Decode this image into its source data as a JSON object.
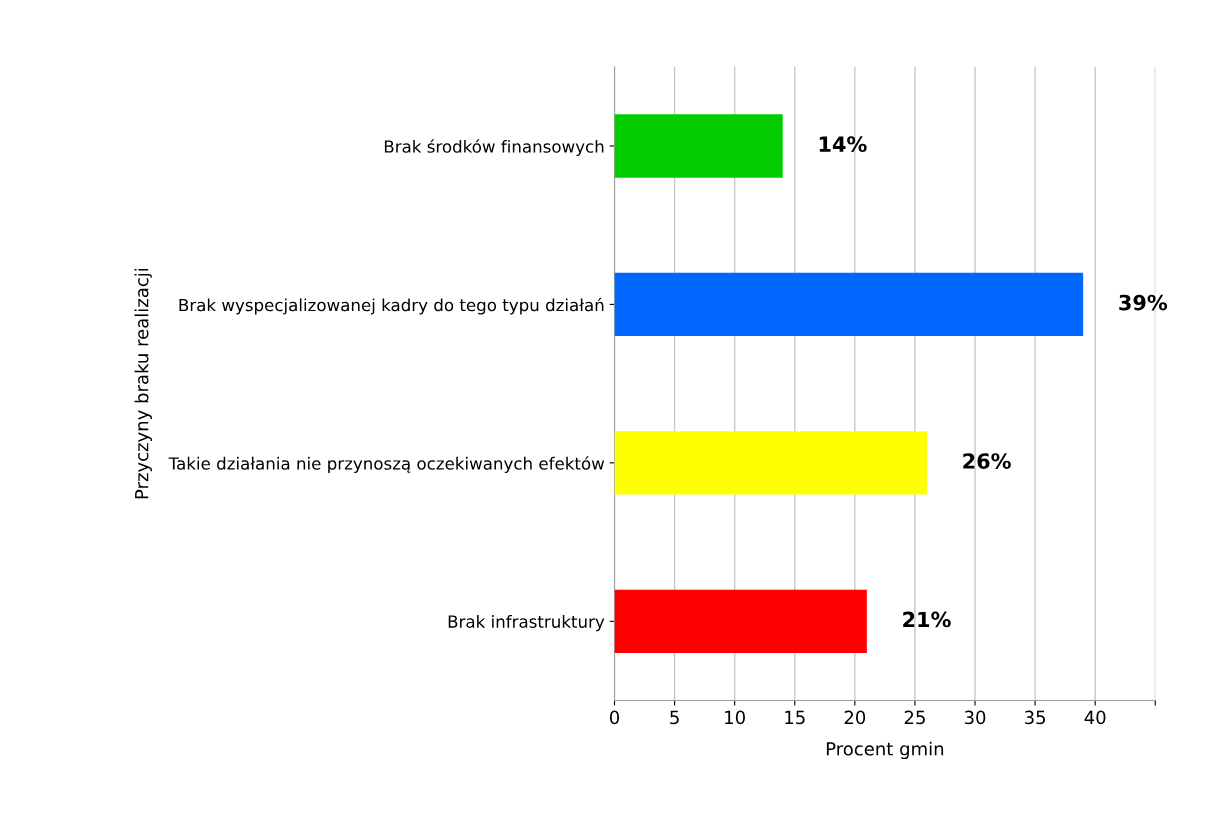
{
  "chart_data": {
    "type": "bar",
    "orientation": "horizontal",
    "categories": [
      "Brak środków finansowych",
      "Brak wyspecjalizowanej kadry do tego typu działań",
      "Takie działania nie przynoszą oczekiwanych efektów",
      "Brak infrastruktury"
    ],
    "values": [
      14,
      39,
      26,
      21
    ],
    "colors": [
      "#00cc00",
      "#0066ff",
      "#ffff00",
      "#ff0000"
    ],
    "value_labels": [
      "14%",
      "39%",
      "26%",
      "21%"
    ],
    "xlabel": "Procent gmin",
    "ylabel": "Przyczyny braku realizacji",
    "xlim": [
      0,
      45
    ],
    "xticks": [
      0,
      5,
      10,
      15,
      20,
      25,
      30,
      35,
      40,
      {
        "value": 45,
        "label": null
      }
    ],
    "grid": "x",
    "legend": false
  }
}
